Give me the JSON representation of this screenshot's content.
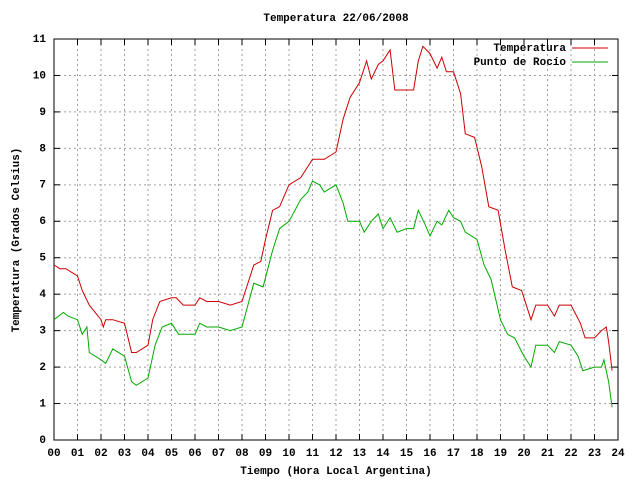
{
  "chart_data": {
    "type": "line",
    "title": "Temperatura 22/06/2008",
    "xlabel": "Tiempo (Hora Local Argentina)",
    "ylabel": "Temperatura (Grados Celsius)",
    "xlim": [
      0,
      24
    ],
    "ylim": [
      0,
      11
    ],
    "xticks": [
      {
        "value": 0,
        "label": "00"
      },
      {
        "value": 1,
        "label": "01"
      },
      {
        "value": 2,
        "label": "02"
      },
      {
        "value": 3,
        "label": "03"
      },
      {
        "value": 4,
        "label": "04"
      },
      {
        "value": 5,
        "label": "05"
      },
      {
        "value": 6,
        "label": "06"
      },
      {
        "value": 7,
        "label": "07"
      },
      {
        "value": 8,
        "label": "08"
      },
      {
        "value": 9,
        "label": "09"
      },
      10,
      11,
      12,
      13,
      14,
      15,
      16,
      17,
      18,
      19,
      20,
      21,
      22,
      23,
      24
    ],
    "yticks": [
      0,
      1,
      2,
      3,
      4,
      5,
      6,
      7,
      8,
      9,
      10,
      11
    ],
    "grid": true,
    "legend": "top-right",
    "series": [
      {
        "name": "Temperatura",
        "color": "#cc0000",
        "x": [
          0,
          0.25,
          0.5,
          1.0,
          1.2,
          1.5,
          2.0,
          2.1,
          2.2,
          2.5,
          3.0,
          3.3,
          3.5,
          4.0,
          4.2,
          4.5,
          5.0,
          5.2,
          5.5,
          6.0,
          6.2,
          6.5,
          7.0,
          7.5,
          8.0,
          8.5,
          8.8,
          9.0,
          9.3,
          9.6,
          10.0,
          10.5,
          10.8,
          11.0,
          11.5,
          12.0,
          12.3,
          12.6,
          13.0,
          13.3,
          13.5,
          13.8,
          14.0,
          14.3,
          14.5,
          15.0,
          15.3,
          15.5,
          15.7,
          16.0,
          16.3,
          16.5,
          16.7,
          17.0,
          17.3,
          17.5,
          17.9,
          18.2,
          18.5,
          18.9,
          19.2,
          19.5,
          19.9,
          20.3,
          20.5,
          21.0,
          21.3,
          21.5,
          22.0,
          22.4,
          22.6,
          23.0,
          23.3,
          23.5,
          23.6,
          23.75
        ],
        "values": [
          4.8,
          4.7,
          4.7,
          4.5,
          4.1,
          3.7,
          3.3,
          3.1,
          3.3,
          3.3,
          3.2,
          2.4,
          2.4,
          2.6,
          3.3,
          3.8,
          3.9,
          3.9,
          3.7,
          3.7,
          3.9,
          3.8,
          3.8,
          3.7,
          3.8,
          4.8,
          4.9,
          5.5,
          6.3,
          6.4,
          7.0,
          7.2,
          7.5,
          7.7,
          7.7,
          7.9,
          8.8,
          9.4,
          9.8,
          10.4,
          9.9,
          10.3,
          10.4,
          10.7,
          9.6,
          9.6,
          9.6,
          10.4,
          10.8,
          10.6,
          10.2,
          10.5,
          10.1,
          10.1,
          9.5,
          8.4,
          8.3,
          7.5,
          6.4,
          6.3,
          5.2,
          4.2,
          4.1,
          3.3,
          3.7,
          3.7,
          3.4,
          3.7,
          3.7,
          3.2,
          2.8,
          2.8,
          3.0,
          3.1,
          2.7,
          1.9
        ]
      },
      {
        "name": "Punto de Rocío",
        "color": "#00aa00",
        "x": [
          0,
          0.4,
          0.6,
          1.0,
          1.2,
          1.4,
          1.5,
          2.0,
          2.2,
          2.5,
          3.0,
          3.3,
          3.5,
          4.0,
          4.3,
          4.6,
          5.0,
          5.3,
          6.0,
          6.2,
          6.5,
          7.0,
          7.5,
          8.0,
          8.5,
          8.9,
          9.3,
          9.6,
          10.0,
          10.5,
          10.8,
          11.0,
          11.3,
          11.5,
          12.0,
          12.3,
          12.5,
          13.0,
          13.2,
          13.5,
          13.8,
          14.0,
          14.3,
          14.6,
          15.0,
          15.3,
          15.5,
          15.8,
          16.0,
          16.3,
          16.5,
          16.8,
          17.0,
          17.3,
          17.5,
          18.0,
          18.3,
          18.6,
          19.0,
          19.3,
          19.6,
          20.0,
          20.3,
          20.5,
          21.0,
          21.3,
          21.5,
          22.0,
          22.3,
          22.5,
          23.0,
          23.3,
          23.4,
          23.6,
          23.75
        ],
        "values": [
          3.3,
          3.5,
          3.4,
          3.3,
          2.9,
          3.1,
          2.4,
          2.2,
          2.1,
          2.5,
          2.3,
          1.6,
          1.5,
          1.7,
          2.6,
          3.1,
          3.2,
          2.9,
          2.9,
          3.2,
          3.1,
          3.1,
          3.0,
          3.1,
          4.3,
          4.2,
          5.2,
          5.8,
          6.0,
          6.6,
          6.8,
          7.1,
          7.0,
          6.8,
          7.0,
          6.5,
          6.0,
          6.0,
          5.7,
          6.0,
          6.2,
          5.8,
          6.1,
          5.7,
          5.8,
          5.8,
          6.3,
          5.9,
          5.6,
          6.0,
          5.9,
          6.3,
          6.1,
          6.0,
          5.7,
          5.5,
          4.8,
          4.4,
          3.3,
          2.9,
          2.8,
          2.3,
          2.0,
          2.6,
          2.6,
          2.4,
          2.7,
          2.6,
          2.3,
          1.9,
          2.0,
          2.0,
          2.2,
          1.6,
          0.9
        ]
      }
    ]
  }
}
